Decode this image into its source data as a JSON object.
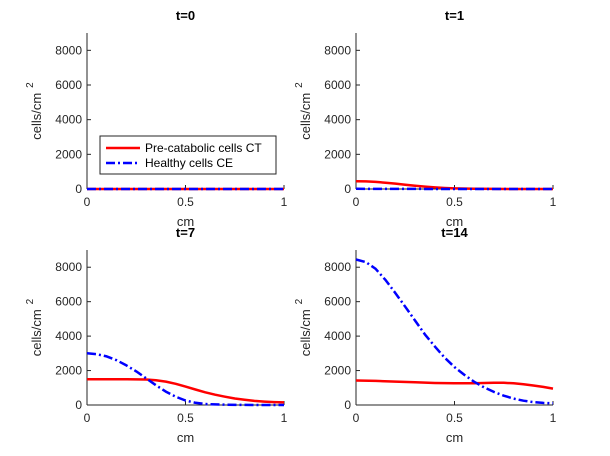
{
  "chart_data": [
    {
      "type": "line",
      "title": "t=0",
      "xlabel": "cm",
      "ylabel": "cells/cm",
      "ylabel_superscript": "2",
      "xlim": [
        0,
        1
      ],
      "ylim": [
        0,
        9000
      ],
      "xticks": [
        "0",
        "0.5",
        "1"
      ],
      "yticks": [
        "0",
        "2000",
        "4000",
        "6000",
        "8000"
      ],
      "series": [
        {
          "name": "Pre-catabolic cells CT",
          "color": "#ff0000",
          "style": "solid",
          "x": [
            0,
            0.25,
            0.5,
            0.75,
            1
          ],
          "y": [
            0,
            0,
            0,
            0,
            0
          ]
        },
        {
          "name": "Healthy cells CE",
          "color": "#0000ff",
          "style": "dashdot",
          "x": [
            0,
            0.25,
            0.5,
            0.75,
            1
          ],
          "y": [
            0,
            0,
            0,
            0,
            0
          ]
        }
      ],
      "legend": {
        "position": "lower-left",
        "entries": [
          "Pre-catabolic cells CT",
          "Healthy cells CE"
        ]
      }
    },
    {
      "type": "line",
      "title": "t=1",
      "xlabel": "cm",
      "ylabel": "cells/cm",
      "ylabel_superscript": "2",
      "xlim": [
        0,
        1
      ],
      "ylim": [
        0,
        9000
      ],
      "xticks": [
        "0",
        "0.5",
        "1"
      ],
      "yticks": [
        "0",
        "2000",
        "4000",
        "6000",
        "8000"
      ],
      "series": [
        {
          "name": "Pre-catabolic cells CT",
          "color": "#ff0000",
          "style": "solid",
          "x": [
            0,
            0.05,
            0.1,
            0.15,
            0.2,
            0.25,
            0.3,
            0.35,
            0.4,
            0.45,
            0.5,
            0.6,
            0.7,
            0.8,
            0.9,
            1.0
          ],
          "y": [
            450,
            440,
            410,
            365,
            310,
            250,
            190,
            140,
            95,
            60,
            35,
            12,
            4,
            1,
            0,
            0
          ]
        },
        {
          "name": "Healthy cells CE",
          "color": "#0000ff",
          "style": "dashdot",
          "x": [
            0,
            0.25,
            0.5,
            0.75,
            1
          ],
          "y": [
            10,
            5,
            0,
            0,
            0
          ]
        }
      ]
    },
    {
      "type": "line",
      "title": "t=7",
      "xlabel": "cm",
      "ylabel": "cells/cm",
      "ylabel_superscript": "2",
      "xlim": [
        0,
        1
      ],
      "ylim": [
        0,
        9000
      ],
      "xticks": [
        "0",
        "0.5",
        "1"
      ],
      "yticks": [
        "0",
        "2000",
        "4000",
        "6000",
        "8000"
      ],
      "series": [
        {
          "name": "Pre-catabolic cells CT",
          "color": "#ff0000",
          "style": "solid",
          "x": [
            0,
            0.1,
            0.2,
            0.3,
            0.35,
            0.4,
            0.45,
            0.5,
            0.55,
            0.6,
            0.65,
            0.7,
            0.75,
            0.8,
            0.85,
            0.9,
            0.95,
            1.0
          ],
          "y": [
            1500,
            1500,
            1500,
            1480,
            1440,
            1360,
            1230,
            1070,
            900,
            740,
            600,
            480,
            380,
            300,
            240,
            200,
            170,
            150
          ]
        },
        {
          "name": "Healthy cells CE",
          "color": "#0000ff",
          "style": "dashdot",
          "x": [
            0,
            0.05,
            0.1,
            0.15,
            0.2,
            0.25,
            0.3,
            0.35,
            0.4,
            0.45,
            0.5,
            0.55,
            0.6,
            0.7,
            0.8,
            0.9,
            1.0
          ],
          "y": [
            3000,
            2950,
            2820,
            2600,
            2300,
            1950,
            1550,
            1150,
            780,
            480,
            260,
            130,
            60,
            15,
            5,
            0,
            0
          ]
        }
      ]
    },
    {
      "type": "line",
      "title": "t=14",
      "xlabel": "cm",
      "ylabel": "cells/cm",
      "ylabel_superscript": "2",
      "xlim": [
        0,
        1
      ],
      "ylim": [
        0,
        9000
      ],
      "xticks": [
        "0",
        "0.5",
        "1"
      ],
      "yticks": [
        "0",
        "2000",
        "4000",
        "6000",
        "8000"
      ],
      "series": [
        {
          "name": "Pre-catabolic cells CT",
          "color": "#ff0000",
          "style": "solid",
          "x": [
            0,
            0.1,
            0.2,
            0.3,
            0.4,
            0.5,
            0.6,
            0.7,
            0.75,
            0.8,
            0.85,
            0.9,
            0.95,
            1.0
          ],
          "y": [
            1420,
            1400,
            1360,
            1320,
            1280,
            1260,
            1260,
            1290,
            1290,
            1260,
            1200,
            1130,
            1050,
            950
          ]
        },
        {
          "name": "Healthy cells CE",
          "color": "#0000ff",
          "style": "dashdot",
          "x": [
            0,
            0.05,
            0.1,
            0.15,
            0.2,
            0.25,
            0.3,
            0.35,
            0.4,
            0.45,
            0.5,
            0.55,
            0.6,
            0.65,
            0.7,
            0.75,
            0.8,
            0.85,
            0.9,
            0.95,
            1.0
          ],
          "y": [
            8450,
            8300,
            7900,
            7250,
            6500,
            5700,
            4900,
            4100,
            3400,
            2750,
            2200,
            1750,
            1350,
            1020,
            760,
            540,
            370,
            250,
            170,
            120,
            100
          ]
        }
      ]
    }
  ]
}
